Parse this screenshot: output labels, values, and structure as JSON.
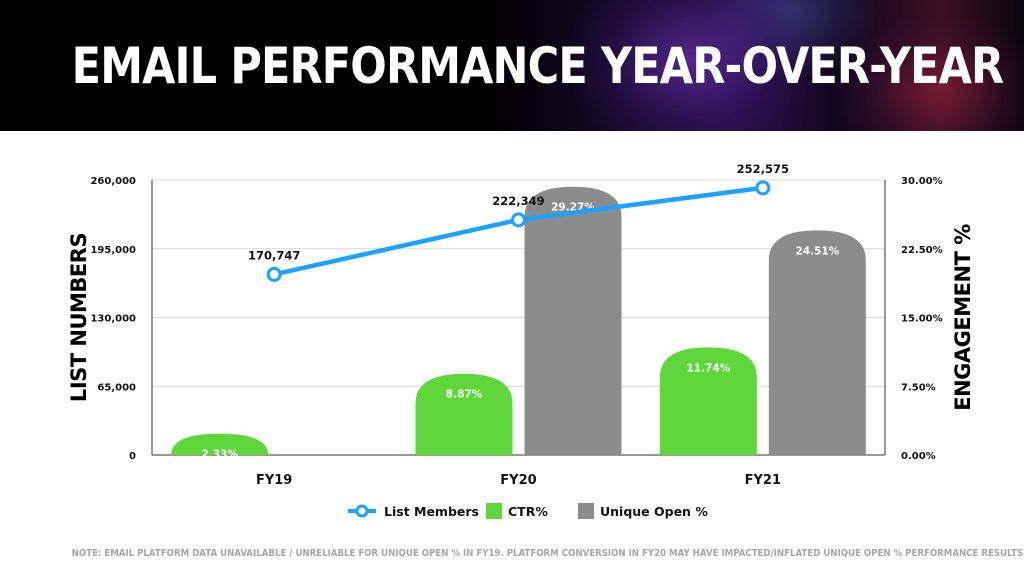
{
  "header": {
    "title": "EMAIL PERFORMANCE YEAR-OVER-YEAR"
  },
  "note": "NOTE: EMAIL PLATFORM DATA UNAVAILABLE / UNRELIABLE FOR UNIQUE OPEN % IN FY19. PLATFORM CONVERSION IN FY20 MAY HAVE IMPACTED/INFLATED UNIQUE OPEN % PERFORMANCE RESULTS.",
  "chart_data": {
    "type": "bar",
    "categories": [
      "FY19",
      "FY20",
      "FY21"
    ],
    "ylabel_left": "LIST NUMBERS",
    "ylabel_right": "ENGAGEMENT %",
    "ylim_left": [
      0,
      260000
    ],
    "ylim_right": [
      0,
      30
    ],
    "left_ticks": [
      "0",
      "65,000",
      "130,000",
      "195,000",
      "260,000"
    ],
    "left_tick_values": [
      0,
      65000,
      130000,
      195000,
      260000
    ],
    "right_ticks": [
      "0.00%",
      "7.50%",
      "15.00%",
      "22.50%",
      "30.00%"
    ],
    "right_tick_values": [
      0,
      7.5,
      15,
      22.5,
      30
    ],
    "grid": true,
    "legend_position": "bottom",
    "series": [
      {
        "name": "List Members",
        "type": "line",
        "axis": "left",
        "color": "#1aa3ff",
        "values": [
          170747,
          222349,
          252575
        ],
        "labels": [
          "170,747",
          "222,349",
          "252,575"
        ]
      },
      {
        "name": "CTR%",
        "type": "bar",
        "axis": "right",
        "color": "#5fd63a",
        "values": [
          2.33,
          8.87,
          11.74
        ],
        "labels": [
          "2.33%",
          "8.87%",
          "11.74%"
        ]
      },
      {
        "name": "Unique Open %",
        "type": "bar",
        "axis": "right",
        "color": "#8c8c8c",
        "values": [
          null,
          29.27,
          24.51
        ],
        "labels": [
          "",
          "29.27%",
          "24.51%"
        ]
      }
    ]
  }
}
